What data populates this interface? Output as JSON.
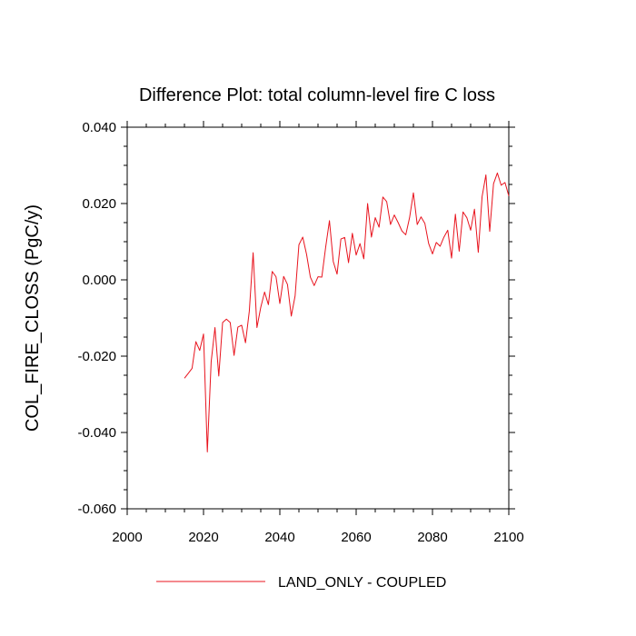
{
  "chart_data": {
    "type": "line",
    "title": "Difference Plot: total column-level fire C loss",
    "xlabel": "",
    "ylabel": "COL_FIRE_CLOSS  (PgC/y)",
    "xlim": [
      2000,
      2100
    ],
    "ylim": [
      -0.06,
      0.04
    ],
    "x_ticks": [
      2000,
      2020,
      2040,
      2060,
      2080,
      2100
    ],
    "x_tick_labels": [
      "2000",
      "2020",
      "2040",
      "2060",
      "2080",
      "2100"
    ],
    "y_ticks": [
      -0.06,
      -0.04,
      -0.02,
      0.0,
      0.02,
      0.04
    ],
    "y_tick_labels": [
      "-0.060",
      "-0.040",
      "-0.020",
      "0.000",
      "0.020",
      "0.040"
    ],
    "grid": false,
    "legend_position": "bottom-center",
    "series": [
      {
        "name": "LAND_ONLY - COUPLED",
        "color": "#e8141e",
        "x": [
          2015,
          2016,
          2017,
          2018,
          2019,
          2020,
          2021,
          2022,
          2023,
          2024,
          2025,
          2026,
          2027,
          2028,
          2029,
          2030,
          2031,
          2032,
          2033,
          2034,
          2035,
          2036,
          2037,
          2038,
          2039,
          2040,
          2041,
          2042,
          2043,
          2044,
          2045,
          2046,
          2047,
          2048,
          2049,
          2050,
          2051,
          2052,
          2053,
          2054,
          2055,
          2056,
          2057,
          2058,
          2059,
          2060,
          2061,
          2062,
          2063,
          2064,
          2065,
          2066,
          2067,
          2068,
          2069,
          2070,
          2071,
          2072,
          2073,
          2074,
          2075,
          2076,
          2077,
          2078,
          2079,
          2080,
          2081,
          2082,
          2083,
          2084,
          2085,
          2086,
          2087,
          2088,
          2089,
          2090,
          2091,
          2092,
          2093,
          2094,
          2095,
          2096,
          2097,
          2098,
          2099,
          2100
        ],
        "values": [
          -0.0258,
          -0.0245,
          -0.0232,
          -0.0162,
          -0.0185,
          -0.0142,
          -0.0451,
          -0.0215,
          -0.0125,
          -0.0252,
          -0.0112,
          -0.0103,
          -0.0112,
          -0.0198,
          -0.0124,
          -0.0119,
          -0.0165,
          -0.0082,
          0.0071,
          -0.0125,
          -0.0072,
          -0.0032,
          -0.0065,
          0.0022,
          0.0008,
          -0.0062,
          0.0009,
          -0.0012,
          -0.0095,
          -0.0042,
          0.0092,
          0.0112,
          0.0067,
          0.0007,
          -0.0015,
          0.0008,
          0.0007,
          0.0085,
          0.0155,
          0.0048,
          0.0015,
          0.0107,
          0.0111,
          0.0045,
          0.0122,
          0.0065,
          0.0095,
          0.0055,
          0.02,
          0.0112,
          0.0163,
          0.0138,
          0.0217,
          0.0205,
          0.0145,
          0.017,
          0.015,
          0.0128,
          0.0118,
          0.0163,
          0.0228,
          0.0145,
          0.0165,
          0.0148,
          0.0095,
          0.0068,
          0.0098,
          0.0088,
          0.0112,
          0.013,
          0.0057,
          0.0172,
          0.0075,
          0.0178,
          0.0163,
          0.013,
          0.0185,
          0.0072,
          0.0218,
          0.0275,
          0.0127,
          0.0252,
          0.028,
          0.0248,
          0.0255,
          0.022
        ]
      }
    ]
  }
}
